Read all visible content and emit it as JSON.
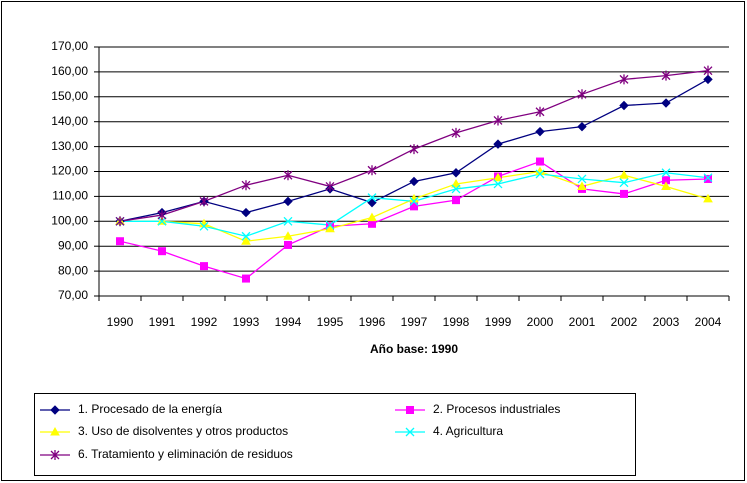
{
  "chart_data": {
    "type": "line",
    "x_label": "Año base: 1990",
    "categories": [
      "1990",
      "1991",
      "1992",
      "1993",
      "1994",
      "1995",
      "1996",
      "1997",
      "1998",
      "1999",
      "2000",
      "2001",
      "2002",
      "2003",
      "2004"
    ],
    "series": [
      {
        "name": "1.  Procesado de la energía",
        "color": "#000080",
        "marker": "diamond",
        "values": [
          100,
          103.5,
          108,
          103.5,
          108,
          113,
          107.5,
          116,
          119.5,
          131,
          136,
          138,
          146.5,
          147.5,
          157
        ]
      },
      {
        "name": "2.  Procesos industriales",
        "color": "#FF00FF",
        "marker": "square",
        "values": [
          92,
          88,
          82,
          77,
          90.5,
          98,
          99,
          106,
          108.5,
          118,
          124,
          113,
          111,
          116.5,
          117
        ]
      },
      {
        "name": "3.  Uso de disolventes y otros productos",
        "color": "#FFFF00",
        "marker": "triangle",
        "values": [
          100,
          100,
          99,
          92,
          94,
          97,
          101.5,
          109,
          115,
          117.5,
          120,
          114,
          118.5,
          114,
          109
        ]
      },
      {
        "name": "4.  Agricultura",
        "color": "#00FFFF",
        "marker": "cross",
        "values": [
          100,
          100,
          98,
          94,
          100,
          98.5,
          109.5,
          108,
          113,
          115,
          119,
          117,
          115.5,
          119.5,
          117.5
        ]
      },
      {
        "name": "6.  Tratamiento y eliminación de residuos",
        "color": "#800080",
        "marker": "star",
        "values": [
          100,
          102.5,
          108,
          114.5,
          118.5,
          114,
          120.5,
          129,
          135.5,
          140.5,
          144,
          151,
          157,
          158.5,
          160.5
        ]
      }
    ],
    "ylim": [
      70,
      170
    ],
    "yticks": [
      {
        "value": 70,
        "label": "70,00"
      },
      {
        "value": 80,
        "label": "80,00"
      },
      {
        "value": 90,
        "label": "90,00"
      },
      {
        "value": 100,
        "label": "100,00"
      },
      {
        "value": 110,
        "label": "110,00"
      },
      {
        "value": 120,
        "label": "120,00"
      },
      {
        "value": 130,
        "label": "130,00"
      },
      {
        "value": 140,
        "label": "140,00"
      },
      {
        "value": 150,
        "label": "150,00"
      },
      {
        "value": 160,
        "label": "160,00"
      },
      {
        "value": 170,
        "label": "170,00"
      }
    ],
    "grid": true,
    "legend": "bottom"
  }
}
